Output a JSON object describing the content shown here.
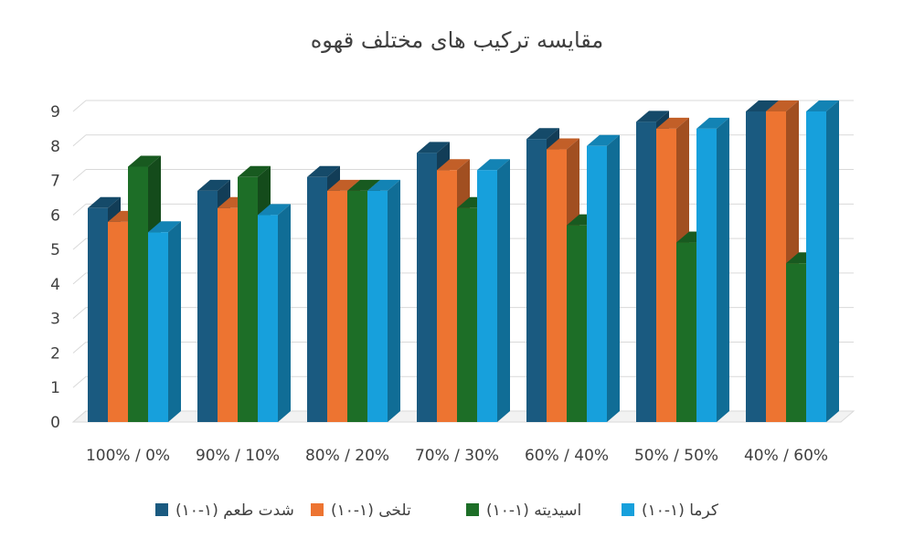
{
  "chart_data": {
    "type": "bar",
    "title": "مقایسه ترکیب های مختلف قهوه",
    "categories": [
      "100% / 0%",
      "90% / 10%",
      "80% / 20%",
      "70% / 30%",
      "60% / 40%",
      "50% / 50%",
      "40% / 60%"
    ],
    "ylim": [
      0,
      9
    ],
    "yticks": [
      0,
      1,
      2,
      3,
      4,
      5,
      6,
      7,
      8,
      9
    ],
    "grid": true,
    "legend_position": "bottom",
    "series": [
      {
        "name": "شدت طعم (۱-۱۰)",
        "color": "#1a5a80",
        "values": [
          6.2,
          6.7,
          7.1,
          7.8,
          8.2,
          8.7,
          9.0
        ]
      },
      {
        "name": "تلخی (۱-۱۰)",
        "color": "#ed7431",
        "values": [
          5.8,
          6.2,
          6.7,
          7.3,
          7.9,
          8.5,
          9.0
        ]
      },
      {
        "name": "اسیدیته (۱-۱۰)",
        "color": "#1d6e27",
        "values": [
          7.4,
          7.1,
          6.7,
          6.2,
          5.7,
          5.2,
          4.6
        ]
      },
      {
        "name": "کرما (۱-۱۰)",
        "color": "#17a0dc",
        "values": [
          5.5,
          6.0,
          6.7,
          7.3,
          8.0,
          8.5,
          9.0
        ]
      }
    ]
  }
}
